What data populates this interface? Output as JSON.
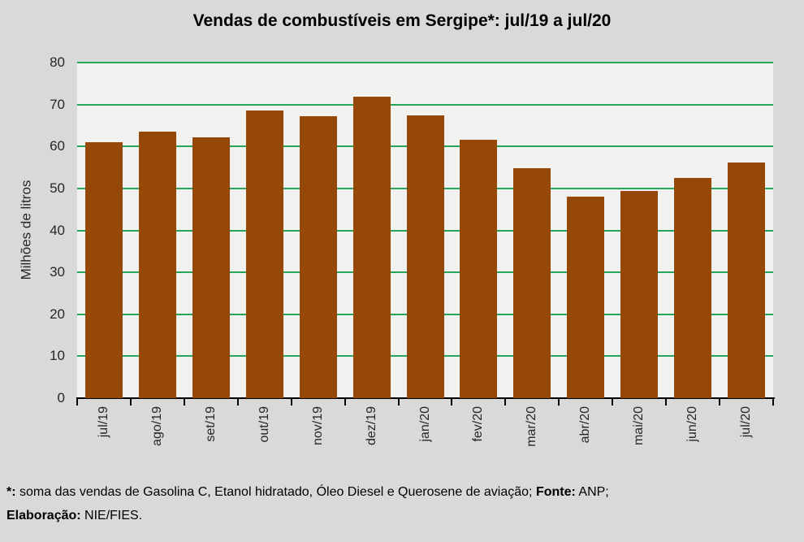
{
  "chart_data": {
    "type": "bar",
    "title": "Vendas de combustíveis em Sergipe*: jul/19 a jul/20",
    "xlabel": "",
    "ylabel": "Milhões de litros",
    "ylim": [
      0,
      80
    ],
    "yticks": [
      0,
      10,
      20,
      30,
      40,
      50,
      60,
      70,
      80
    ],
    "grid": true,
    "legend": "none",
    "categories": [
      "jul/19",
      "ago/19",
      "set/19",
      "out/19",
      "nov/19",
      "dez/19",
      "jan/20",
      "fev/20",
      "mar/20",
      "abr/20",
      "mai/20",
      "jun/20",
      "jul/20"
    ],
    "values": [
      61.0,
      63.6,
      62.1,
      68.6,
      67.2,
      71.9,
      67.5,
      61.6,
      54.9,
      48.0,
      49.4,
      52.5,
      56.2
    ]
  },
  "colors": {
    "bar": "#964808",
    "gridline": "#28A55A",
    "plot_background": "#F1F1EF",
    "page_background": "#D9D9D9",
    "axis": "#000000",
    "tick_text": "#262626"
  },
  "footnote": {
    "star_label": "*:",
    "star_text": " soma das vendas de Gasolina C, Etanol hidratado, Óleo Diesel e Querosene de aviação; ",
    "fonte_label": "Fonte:",
    "fonte_text": " ANP;",
    "elaboracao_label": "Elaboração:",
    "elaboracao_text": " NIE/FIES."
  }
}
